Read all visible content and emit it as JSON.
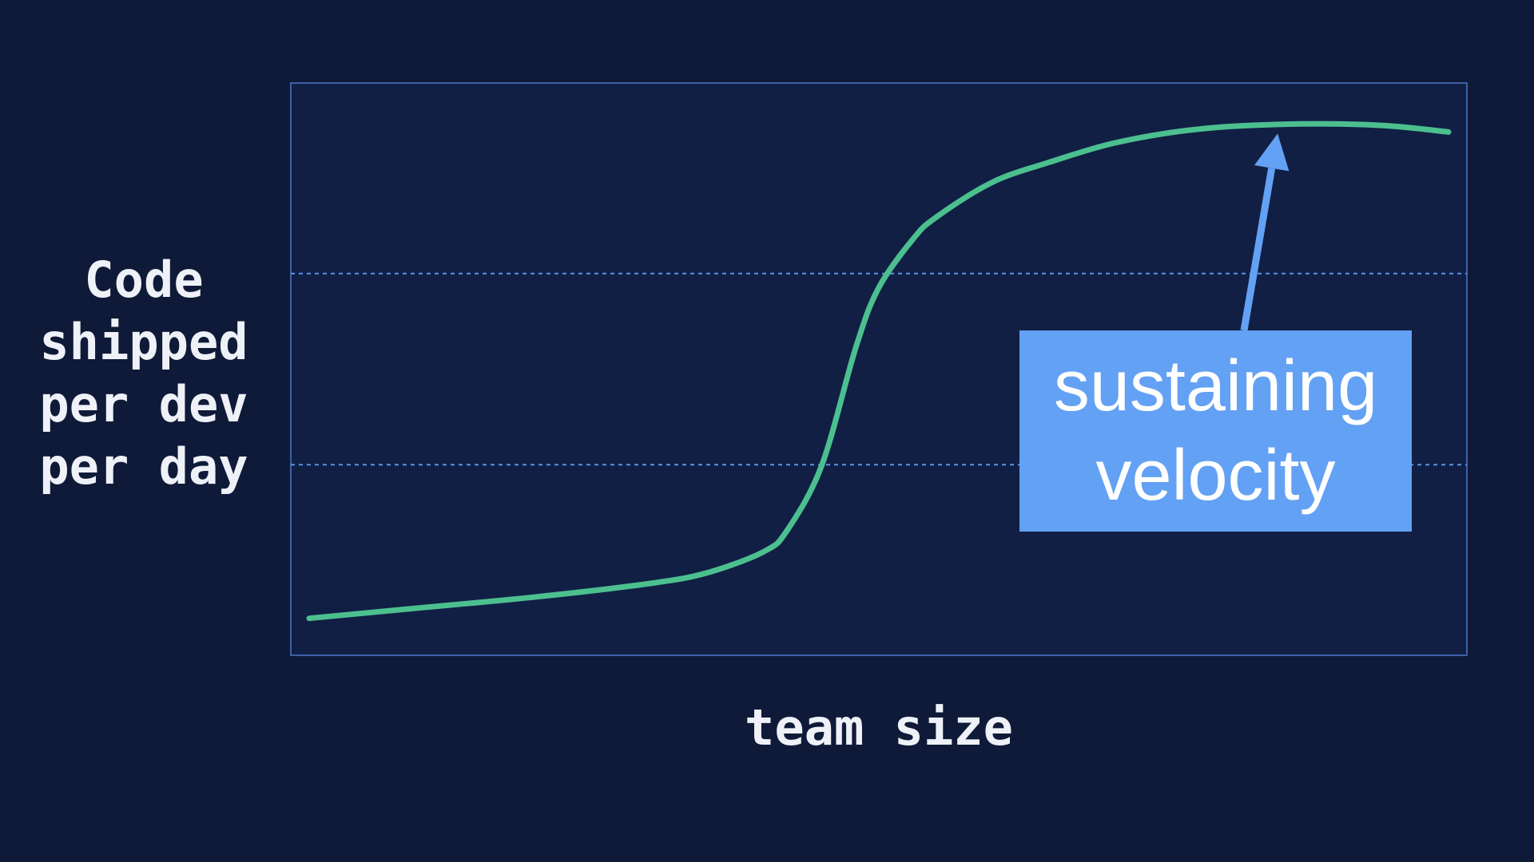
{
  "colors": {
    "background": "#0f1a38",
    "plot_background": "#111f44",
    "plot_border": "#4e78c8",
    "gridline": "#5b93e8",
    "curve": "#4cbf8f",
    "annotation": "#63a1f4",
    "text": "#eef1f7"
  },
  "chart_data": {
    "type": "line",
    "title": "",
    "xlabel": "team size",
    "ylabel": "Code\nshipped\nper dev\nper day",
    "xlim": [
      0,
      100
    ],
    "ylim": [
      0,
      100
    ],
    "grid": "horizontal dotted lines",
    "gridlines_y": [
      33.3,
      66.7
    ],
    "x_ticks": [],
    "y_ticks": [],
    "series": [
      {
        "x": [
          0,
          10,
          20,
          30,
          35,
          40,
          42,
          45,
          48,
          50,
          53,
          55,
          60,
          65,
          70,
          75,
          80,
          85,
          90,
          95,
          100
        ],
        "y": [
          4.5,
          6.5,
          8.5,
          11,
          13,
          17,
          21,
          33,
          55,
          66,
          75,
          79,
          85.6,
          89.3,
          92.5,
          94.6,
          95.8,
          96.3,
          96.4,
          96.0,
          94.9
        ]
      }
    ],
    "annotations": [
      {
        "text": "sustaining\nvelocity",
        "arrow_to": {
          "x": 85,
          "y": 94.9
        }
      }
    ]
  }
}
